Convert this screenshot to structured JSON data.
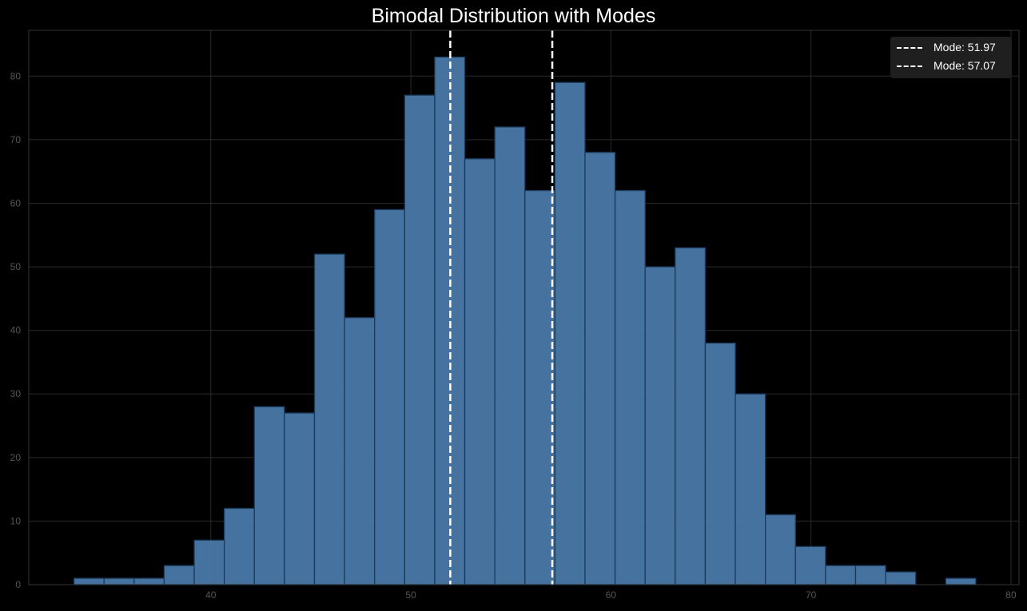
{
  "chart_data": {
    "type": "bar",
    "title": "Bimodal Distribution with Modes",
    "xlabel": "",
    "ylabel": "",
    "bin_start": 33.16,
    "bin_width": 1.5027,
    "values": [
      1,
      1,
      1,
      3,
      7,
      12,
      28,
      27,
      52,
      42,
      59,
      77,
      83,
      67,
      72,
      62,
      79,
      68,
      62,
      50,
      53,
      38,
      30,
      11,
      6,
      3,
      3,
      2,
      0,
      1
    ],
    "xlim": [
      30.9,
      80.4
    ],
    "ylim": [
      0,
      87.2
    ],
    "xticks": [
      "40",
      "50",
      "60",
      "70",
      "80"
    ],
    "yticks": [
      "0",
      "10",
      "20",
      "30",
      "40",
      "50",
      "60",
      "70",
      "80"
    ],
    "grid": true,
    "bar_color": "#4a78a8",
    "edge_color": "#1a3a5c",
    "modes": [
      {
        "value": 51.97,
        "label": "Mode: 51.97"
      },
      {
        "value": 57.07,
        "label": "Mode: 57.07"
      }
    ],
    "mode_line_color": "#ffffff",
    "legend_position": "top-right"
  }
}
